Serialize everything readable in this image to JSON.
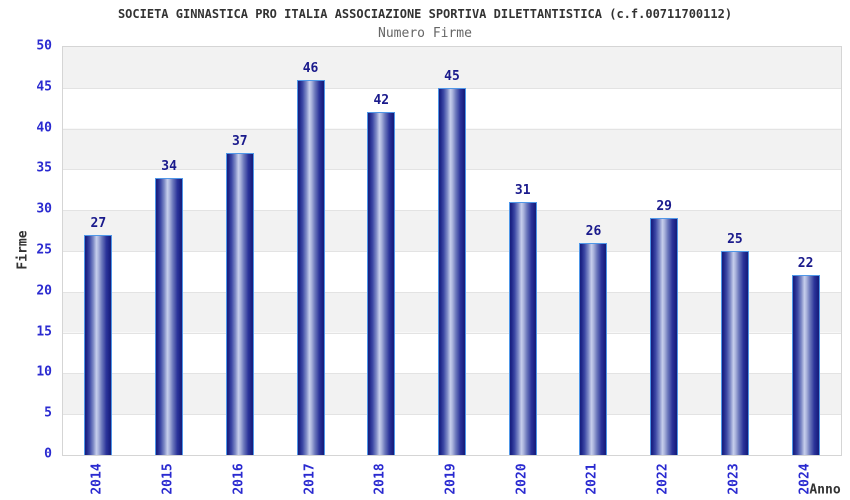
{
  "header": {
    "title": "SOCIETA GINNASTICA PRO ITALIA ASSOCIAZIONE SPORTIVA DILETTANTISTICA (c.f.00711700112)",
    "subtitle": "Numero Firme"
  },
  "chart_data": {
    "type": "bar",
    "title": "SOCIETA GINNASTICA PRO ITALIA ASSOCIAZIONE SPORTIVA DILETTANTISTICA (c.f.00711700112)",
    "subtitle": "Numero Firme",
    "categories": [
      "2014",
      "2015",
      "2016",
      "2017",
      "2018",
      "2019",
      "2020",
      "2021",
      "2022",
      "2023",
      "2024"
    ],
    "values": [
      27,
      34,
      37,
      46,
      42,
      45,
      31,
      26,
      29,
      25,
      22
    ],
    "xlabel": "Anno",
    "ylabel": "Firme",
    "ylim": [
      0,
      50
    ],
    "ytick_step": 5,
    "y_ticks": [
      "0",
      "5",
      "10",
      "15",
      "20",
      "25",
      "30",
      "35",
      "40",
      "45",
      "50"
    ],
    "grid": "horizontal alternating bands, light gridline every 5 units",
    "legend": "none",
    "colors": {
      "bar_dark": "#181e7c",
      "bar_light": "#c7cfec",
      "bar_border": "#4f97e8",
      "tick_label": "#2a2ad0",
      "value_label": "#1a1a8c",
      "band_gray": "#f2f2f2",
      "band_white": "#ffffff",
      "plot_border": "#d5d5d5",
      "title_color": "#333333",
      "subtitle_color": "#666666"
    }
  }
}
